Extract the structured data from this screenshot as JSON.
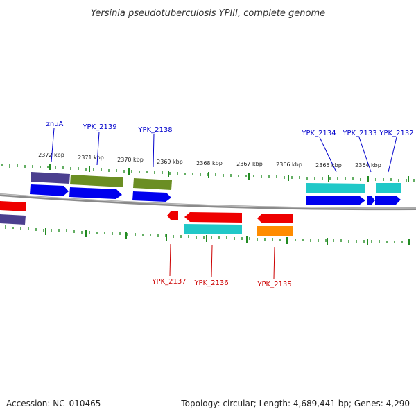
{
  "title": "Yersinia pseudotuberculosis YPIII, complete genome",
  "footer": {
    "accession": "Accession: NC_010465",
    "topology": "Topology: circular; Length: 4,689,441 bp; Genes: 4,290"
  },
  "colors": {
    "backbone": "#8a8a8a",
    "tick": "#228b22",
    "gene_blue": "#0000ee",
    "gene_red": "#ee0000",
    "gene_cyan": "#20c8c8",
    "gene_olive": "#6b8e23",
    "gene_purple": "#4b3f8f",
    "gene_orange": "#ff8c00",
    "label_forward": "#0000cc",
    "label_reverse": "#cc0000"
  },
  "scale": {
    "unit": "kbp",
    "labels": [
      "2372 kbp",
      "2371 kbp",
      "2370 kbp",
      "2369 kbp",
      "2368 kbp",
      "2367 kbp",
      "2366 kbp",
      "2365 kbp",
      "2364 kbp"
    ]
  },
  "gene_labels": {
    "forward": [
      "znuA",
      "YPK_2139",
      "YPK_2138",
      "YPK_2134",
      "YPK_2133",
      "YPK_2132"
    ],
    "reverse": [
      "YPK_2137",
      "YPK_2136",
      "YPK_2135"
    ]
  }
}
